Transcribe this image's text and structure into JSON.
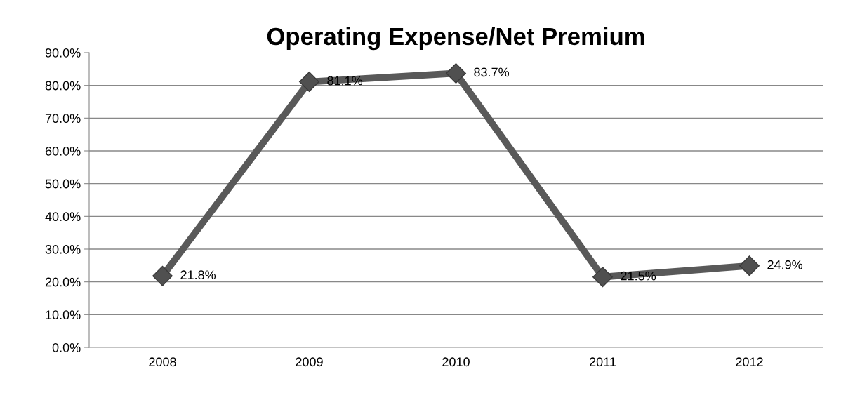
{
  "chart_data": {
    "type": "line",
    "title": "Operating Expense/Net Premium",
    "categories": [
      "2008",
      "2009",
      "2010",
      "2011",
      "2012"
    ],
    "series": [
      {
        "color": "#595959",
        "values": [
          21.8,
          81.1,
          83.7,
          21.5,
          24.9
        ]
      }
    ],
    "value_labels": [
      "21.8%",
      "81.1%",
      "83.7%",
      "21.5%",
      "24.9%"
    ],
    "ylim": [
      0,
      90
    ],
    "yticks": [
      {
        "value": 0,
        "label": "0.0%"
      },
      {
        "value": 10,
        "label": "10.0%"
      },
      {
        "value": 20,
        "label": "20.0%"
      },
      {
        "value": 30,
        "label": "30.0%"
      },
      {
        "value": 40,
        "label": "40.0%"
      },
      {
        "value": 50,
        "label": "50.0%"
      },
      {
        "value": 60,
        "label": "60.0%"
      },
      {
        "value": 70,
        "label": "70.0%"
      },
      {
        "value": 80,
        "label": "80.0%"
      },
      {
        "value": 90,
        "label": "90.0%"
      }
    ],
    "grid": "y",
    "marker": "diamond",
    "line_style": "solid",
    "legend": false
  }
}
